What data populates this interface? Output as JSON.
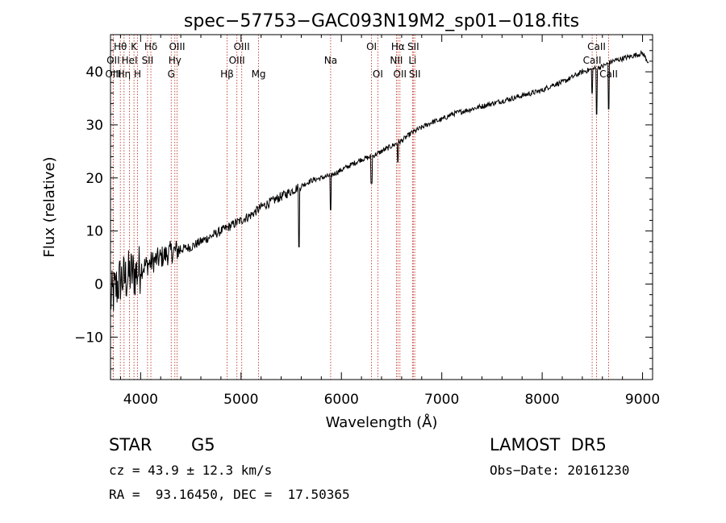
{
  "chart_data": {
    "type": "line",
    "title": "spec−57753−GAC093N19M2_sp01−018.fits",
    "xlabel": "Wavelength (Å)",
    "ylabel": "Flux (relative)",
    "xlim": [
      3700,
      9100
    ],
    "ylim": [
      -18,
      47
    ],
    "x_ticks": [
      4000,
      5000,
      6000,
      7000,
      8000,
      9000
    ],
    "y_ticks": [
      -10,
      0,
      10,
      20,
      30,
      40
    ],
    "y_tick_labels": [
      "−10",
      "0",
      "10",
      "20",
      "30",
      "40"
    ],
    "grid": false,
    "series": [
      {
        "x": [
          3700,
          3750,
          3800,
          3850,
          3900,
          3950,
          4000,
          4100,
          4200,
          4300,
          4400,
          4500,
          4600,
          4700,
          4800,
          4900,
          5000,
          5100,
          5200,
          5300,
          5400,
          5500,
          5600,
          5700,
          5800,
          5900,
          6000,
          6100,
          6200,
          6300,
          6400,
          6500,
          6600,
          6700,
          6800,
          6900,
          7000,
          7100,
          7200,
          7300,
          7400,
          7500,
          7600,
          7700,
          7800,
          7900,
          8000,
          8100,
          8200,
          8300,
          8400,
          8500,
          8600,
          8700,
          8800,
          8900,
          9000,
          9050
        ],
        "y": [
          -3,
          -1,
          1,
          1,
          2,
          2,
          3,
          4,
          5,
          6,
          6.5,
          7,
          8,
          9,
          10,
          11,
          12,
          13,
          14.5,
          15.5,
          16.5,
          17.5,
          18.5,
          19.5,
          20,
          20.5,
          21.5,
          22.5,
          23.5,
          24,
          25,
          26,
          27,
          28.5,
          29.5,
          30.5,
          31,
          32,
          32.5,
          33,
          33.5,
          34,
          34.5,
          35,
          35.5,
          36,
          36.5,
          37.5,
          38,
          39,
          40,
          40.5,
          41,
          42,
          42.5,
          43,
          43.5,
          42
        ]
      }
    ],
    "absorption": [
      {
        "x": 5577,
        "y": 7
      },
      {
        "x": 5893,
        "y": 14
      },
      {
        "x": 6300,
        "y": 19
      },
      {
        "x": 6563,
        "y": 23
      },
      {
        "x": 8498,
        "y": 36
      },
      {
        "x": 8542,
        "y": 32
      },
      {
        "x": 8662,
        "y": 33
      }
    ],
    "line_markers": [
      {
        "label": "Hθ",
        "x": 3798,
        "row": 0
      },
      {
        "label": "OII",
        "x": 3727,
        "row": 1
      },
      {
        "label": "OIII",
        "x": 3727,
        "row": 2
      },
      {
        "label": "HeI",
        "x": 3889,
        "row": 1
      },
      {
        "label": "Hη",
        "x": 3835,
        "row": 2
      },
      {
        "label": "K",
        "x": 3934,
        "row": 0
      },
      {
        "label": "SII",
        "x": 4069,
        "row": 1
      },
      {
        "label": "H",
        "x": 3969,
        "row": 2
      },
      {
        "label": "Hδ",
        "x": 4102,
        "row": 0
      },
      {
        "label": "OIII",
        "x": 4363,
        "row": 0
      },
      {
        "label": "Hγ",
        "x": 4341,
        "row": 1
      },
      {
        "label": "G",
        "x": 4305,
        "row": 2
      },
      {
        "label": "OIII",
        "x": 5007,
        "row": 0
      },
      {
        "label": "OIII",
        "x": 4959,
        "row": 1
      },
      {
        "label": "Hβ",
        "x": 4861,
        "row": 2
      },
      {
        "label": "Mg",
        "x": 5175,
        "row": 2
      },
      {
        "label": "Na",
        "x": 5893,
        "row": 1
      },
      {
        "label": "OI",
        "x": 6300,
        "row": 0
      },
      {
        "label": "OI",
        "x": 6363,
        "row": 2
      },
      {
        "label": "Hα",
        "x": 6563,
        "row": 0
      },
      {
        "label": "NII",
        "x": 6548,
        "row": 1
      },
      {
        "label": "OII",
        "x": 6583,
        "row": 2
      },
      {
        "label": "SII",
        "x": 6716,
        "row": 0
      },
      {
        "label": "Li",
        "x": 6708,
        "row": 1
      },
      {
        "label": "SII",
        "x": 6731,
        "row": 2
      },
      {
        "label": "CaII",
        "x": 8542,
        "row": 0
      },
      {
        "label": "CaII",
        "x": 8498,
        "row": 1
      },
      {
        "label": "CaII",
        "x": 8662,
        "row": 2
      }
    ]
  },
  "info": {
    "class_label": "STAR",
    "subclass": "G5",
    "survey": "LAMOST  DR5",
    "cz": "cz = 43.9 ± 12.3 km/s",
    "obs_date": "Obs−Date: 20161230",
    "coords": "RA =  93.16450, DEC =  17.50365"
  }
}
